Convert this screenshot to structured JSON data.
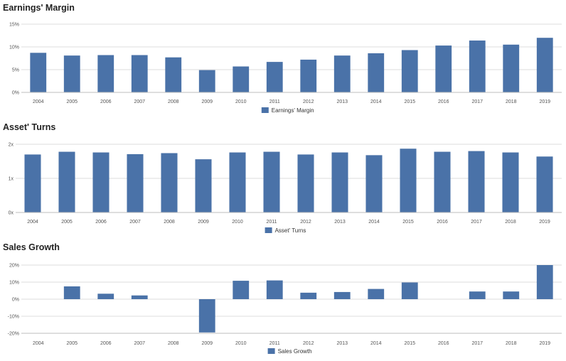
{
  "colors": {
    "bar": "#4a72a8",
    "grid": "#dcdcdc",
    "axis": "#bdbdbd"
  },
  "chart_data": [
    {
      "type": "bar",
      "title": "Earnings' Margin",
      "categories": [
        "2004",
        "2005",
        "2006",
        "2007",
        "2008",
        "2009",
        "2010",
        "2011",
        "2012",
        "2013",
        "2014",
        "2015",
        "2016",
        "2017",
        "2018",
        "2019"
      ],
      "series": [
        {
          "name": "Earnings' Margin",
          "values": [
            8.7,
            8.1,
            8.2,
            8.2,
            7.7,
            4.9,
            5.7,
            6.7,
            7.2,
            8.1,
            8.6,
            9.3,
            10.3,
            11.4,
            10.5,
            12.0
          ]
        }
      ],
      "yticks": [
        0,
        5,
        10,
        15
      ],
      "ytick_labels": [
        "0%",
        "5%",
        "10%",
        "15%"
      ],
      "ylim": [
        0,
        15
      ],
      "grid": true,
      "legend": "bottom-center"
    },
    {
      "type": "bar",
      "title": "Asset' Turns",
      "categories": [
        "2004",
        "2005",
        "2006",
        "2007",
        "2008",
        "2009",
        "2010",
        "2011",
        "2012",
        "2013",
        "2014",
        "2015",
        "2016",
        "2017",
        "2018",
        "2019"
      ],
      "series": [
        {
          "name": "Asset' Turns",
          "values": [
            1.7,
            1.78,
            1.76,
            1.71,
            1.74,
            1.56,
            1.76,
            1.78,
            1.7,
            1.76,
            1.68,
            1.87,
            1.78,
            1.8,
            1.76,
            1.64
          ]
        }
      ],
      "yticks": [
        0,
        1,
        2
      ],
      "ytick_labels": [
        "0x",
        "1x",
        "2x"
      ],
      "ylim": [
        0,
        2
      ],
      "grid": true,
      "legend": "bottom-center"
    },
    {
      "type": "bar",
      "title": "Sales Growth",
      "categories": [
        "2004",
        "2005",
        "2006",
        "2007",
        "2008",
        "2009",
        "2010",
        "2011",
        "2012",
        "2013",
        "2014",
        "2015",
        "2016",
        "2017",
        "2018",
        "2019"
      ],
      "series": [
        {
          "name": "Sales Growth",
          "values": [
            null,
            7.5,
            3.2,
            2.2,
            null,
            -19.5,
            10.8,
            11.0,
            3.8,
            4.2,
            6.0,
            9.8,
            null,
            4.5,
            4.5,
            20.0
          ]
        }
      ],
      "yticks": [
        -20,
        -10,
        0,
        10,
        20
      ],
      "ytick_labels": [
        "-20%",
        "-10%",
        "0%",
        "10%",
        "20%"
      ],
      "ylim": [
        -20,
        20
      ],
      "grid": true,
      "legend": "bottom-center"
    }
  ]
}
